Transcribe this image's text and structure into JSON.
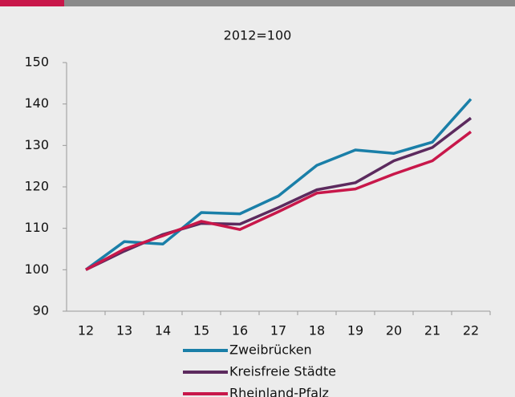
{
  "chart_data": {
    "type": "line",
    "title": "2012=100",
    "categories": [
      "12",
      "13",
      "14",
      "15",
      "16",
      "17",
      "18",
      "19",
      "20",
      "21",
      "22"
    ],
    "series": [
      {
        "name": "Zweibrücken",
        "color": "#1a7fa8",
        "values": [
          100,
          106.8,
          106.2,
          113.8,
          113.5,
          117.8,
          125.2,
          128.9,
          128.1,
          130.8,
          141.2
        ]
      },
      {
        "name": "Kreisfreie Städte",
        "color": "#5c2a5e",
        "values": [
          100,
          104.5,
          108.5,
          111.2,
          111.0,
          115.0,
          119.3,
          121.0,
          126.3,
          129.5,
          136.6
        ]
      },
      {
        "name": "Rheinland-Pfalz",
        "color": "#c8174a",
        "values": [
          100,
          105.0,
          108.2,
          111.7,
          109.7,
          114.0,
          118.5,
          119.5,
          123.1,
          126.3,
          133.3
        ]
      }
    ],
    "ylim": [
      90,
      150
    ],
    "yticks": [
      90,
      100,
      110,
      120,
      130,
      140,
      150
    ],
    "grid": false
  }
}
